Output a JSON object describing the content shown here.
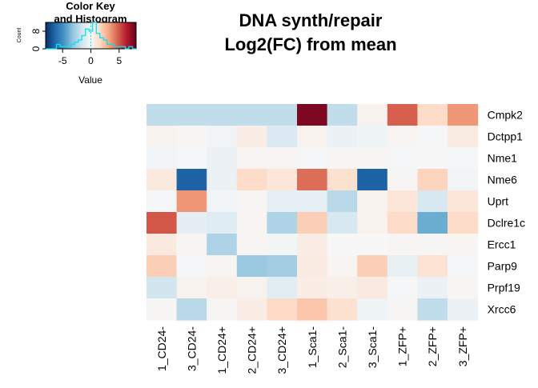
{
  "chart_data": {
    "type": "heatmap",
    "title_lines": [
      "DNA synth/repair",
      "Log2(FC) from mean"
    ],
    "rows": [
      "Cmpk2",
      "Dctpp1",
      "Nme1",
      "Nme6",
      "Uprt",
      "Dclre1c",
      "Ercc1",
      "Parp9",
      "Prpf19",
      "Xrcc6"
    ],
    "columns": [
      "1_CD24-",
      "3_CD24-",
      "1_CD24+",
      "2_CD24+",
      "3_CD24+",
      "1_Sca1-",
      "2_Sca1-",
      "3_Sca1-",
      "1_ZFP+",
      "2_ZFP+",
      "3_ZFP+"
    ],
    "values": [
      [
        -2.0,
        -2.0,
        -2.0,
        -2.0,
        -2.0,
        7.5,
        -2.0,
        0.3,
        4.8,
        1.5,
        3.5
      ],
      [
        0.3,
        0.1,
        -0.3,
        0.6,
        -1.2,
        0.3,
        -0.5,
        -0.4,
        0.2,
        -0.1,
        0.7
      ],
      [
        -0.3,
        -0.1,
        -0.5,
        0.2,
        0.1,
        -0.1,
        0.1,
        0.1,
        -0.1,
        0.0,
        -0.1
      ],
      [
        0.8,
        -6.5,
        -0.5,
        1.5,
        1.0,
        4.5,
        1.3,
        -6.5,
        0.1,
        1.8,
        -0.3
      ],
      [
        -0.1,
        3.5,
        -0.3,
        0.1,
        -0.7,
        -0.7,
        -2.2,
        0.3,
        1.0,
        -1.3,
        1.0
      ],
      [
        5.0,
        -0.8,
        -1.0,
        0.2,
        -2.5,
        2.0,
        -1.3,
        0.3,
        1.5,
        -4.0,
        1.5
      ],
      [
        0.8,
        0.1,
        -2.5,
        0.2,
        -0.2,
        0.6,
        0.0,
        0.0,
        0.1,
        0.1,
        0.2
      ],
      [
        2.0,
        -0.1,
        0.2,
        -3.0,
        -2.8,
        0.7,
        0.2,
        2.0,
        -0.6,
        1.2,
        -0.1
      ],
      [
        -1.5,
        0.3,
        0.5,
        0.3,
        -0.9,
        0.6,
        0.5,
        0.8,
        -0.1,
        -0.5,
        0.1
      ],
      [
        0.1,
        -2.2,
        0.1,
        0.6,
        1.6,
        2.2,
        1.3,
        -0.4,
        0.1,
        -2.0,
        -0.5
      ]
    ],
    "color_key": {
      "title_lines": [
        "Color Key",
        "and Histogram"
      ],
      "xlabel": "Value",
      "ylabel": "Count",
      "x_ticks": [
        -5,
        0,
        5
      ],
      "x_range": [
        -8,
        8
      ],
      "y_ticks": [
        0,
        8
      ],
      "palette": [
        "#053061",
        "#2166ac",
        "#4393c3",
        "#92c5de",
        "#d1e5f0",
        "#f7f7f7",
        "#fddbc7",
        "#f4a582",
        "#d6604d",
        "#b2182b",
        "#67001f"
      ],
      "histogram_color": "#00e5ee",
      "histogram_counts": [
        0,
        0,
        0,
        2,
        1,
        1,
        1,
        2,
        3,
        4,
        6,
        9,
        8,
        12,
        7,
        5,
        4,
        2,
        2,
        1,
        1,
        1,
        0,
        1,
        0
      ]
    }
  }
}
